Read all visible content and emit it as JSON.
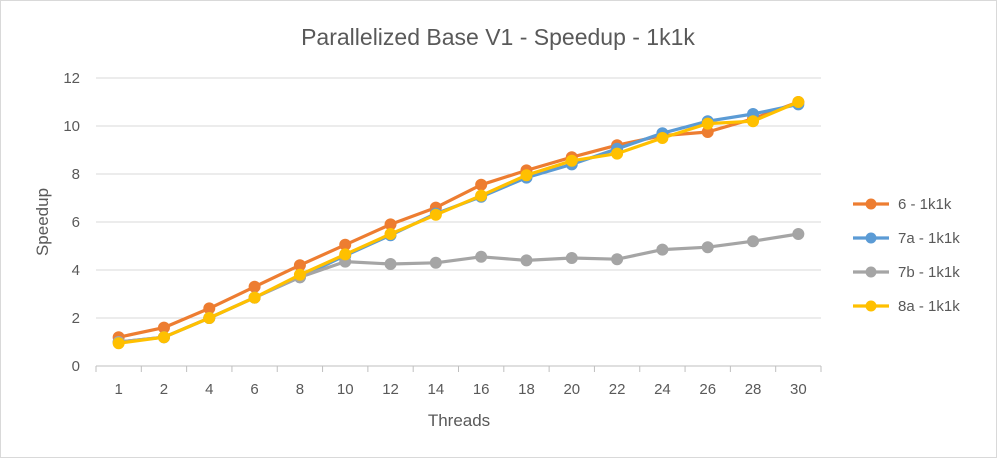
{
  "chart_data": {
    "type": "line",
    "title": "Parallelized Base V1 - Speedup - 1k1k",
    "xlabel": "Threads",
    "ylabel": "Speedup",
    "categories": [
      "1",
      "2",
      "4",
      "6",
      "8",
      "10",
      "12",
      "14",
      "16",
      "18",
      "20",
      "22",
      "24",
      "26",
      "28",
      "30"
    ],
    "ylim": [
      0,
      12
    ],
    "yticks": [
      0,
      2,
      4,
      6,
      8,
      10,
      12
    ],
    "grid": true,
    "legend_position": "right",
    "series": [
      {
        "name": "6 - 1k1k",
        "color": "#ED7D31",
        "values": [
          1.2,
          1.6,
          2.4,
          3.3,
          4.2,
          5.05,
          5.9,
          6.6,
          7.55,
          8.15,
          8.7,
          9.2,
          9.6,
          9.75,
          10.3,
          11.0
        ]
      },
      {
        "name": "7a - 1k1k",
        "color": "#5B9BD5",
        "values": [
          1.0,
          1.2,
          2.0,
          2.85,
          3.7,
          4.6,
          5.45,
          6.35,
          7.05,
          7.85,
          8.4,
          9.05,
          9.7,
          10.2,
          10.5,
          10.9
        ]
      },
      {
        "name": "7b - 1k1k",
        "color": "#A5A5A5",
        "values": [
          1.0,
          1.2,
          2.0,
          2.85,
          3.7,
          4.35,
          4.25,
          4.3,
          4.55,
          4.4,
          4.5,
          4.45,
          4.85,
          4.95,
          5.2,
          5.5
        ]
      },
      {
        "name": "8a - 1k1k",
        "color": "#FFC000",
        "values": [
          0.95,
          1.2,
          2.0,
          2.85,
          3.8,
          4.65,
          5.5,
          6.3,
          7.1,
          7.95,
          8.55,
          8.85,
          9.5,
          10.1,
          10.2,
          11.0
        ]
      }
    ]
  }
}
